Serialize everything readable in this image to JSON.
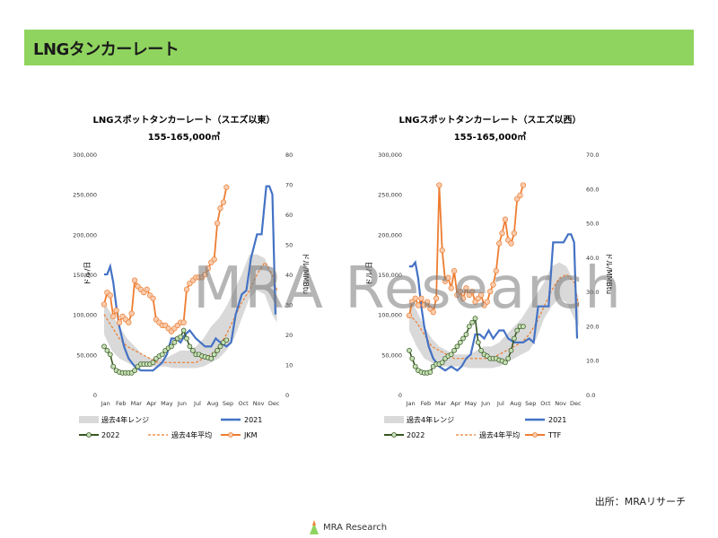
{
  "page": {
    "title": "LNGタンカーレート",
    "source": "出所：MRAリサーチ",
    "logo_text": "MRA Research",
    "watermark": "MRA Research"
  },
  "chart_data": [
    {
      "type": "line",
      "title": "LNGスポットタンカーレート（スエズ以東）",
      "subtitle": "155-165,000㎥",
      "months": [
        "Jan",
        "Feb",
        "Mar",
        "Apr",
        "May",
        "Jun",
        "Jul",
        "Aug",
        "Sep",
        "Oct",
        "Nov",
        "Dec"
      ],
      "y_left_ticks": [
        "0",
        "50,000",
        "100,000",
        "150,000",
        "200,000",
        "250,000",
        "300,000"
      ],
      "y_left_max": 300000,
      "y_left_label": "ドル/日",
      "y_right_ticks": [
        "0",
        "10",
        "20",
        "30",
        "40",
        "50",
        "60",
        "70",
        "80"
      ],
      "y_right_max": 80,
      "y_right_label": "ドル/MMBtu",
      "range4y": {
        "x": [
          0,
          0.5,
          1,
          1.5,
          2,
          2.5,
          3,
          3.5,
          4,
          4.5,
          5,
          5.5,
          6,
          6.5,
          7,
          7.5,
          8,
          8.5,
          9,
          9.5,
          10,
          10.5,
          11,
          11.3
        ],
        "lo": [
          75000,
          55000,
          45000,
          40000,
          35000,
          35000,
          35000,
          35000,
          35000,
          33000,
          33000,
          33000,
          33000,
          35000,
          40000,
          45000,
          55000,
          70000,
          95000,
          120000,
          130000,
          125000,
          100000,
          90000
        ],
        "hi": [
          115000,
          100000,
          85000,
          70000,
          60000,
          50000,
          45000,
          45000,
          45000,
          50000,
          55000,
          55000,
          60000,
          70000,
          85000,
          95000,
          110000,
          130000,
          150000,
          175000,
          175000,
          170000,
          150000,
          130000
        ]
      },
      "avg4y": {
        "x": [
          0,
          0.5,
          1,
          1.5,
          2,
          2.5,
          3,
          3.5,
          4,
          4.5,
          5,
          5.5,
          6,
          6.5,
          7,
          7.5,
          8,
          8.5,
          9,
          9.5,
          10,
          10.5,
          11,
          11.3
        ],
        "y": [
          100000,
          85000,
          70000,
          60000,
          55000,
          50000,
          45000,
          40000,
          40000,
          40000,
          40000,
          40000,
          40000,
          45000,
          50000,
          60000,
          75000,
          95000,
          115000,
          130000,
          150000,
          165000,
          150000,
          130000
        ]
      },
      "y2021": {
        "x": [
          0,
          0.2,
          0.4,
          0.6,
          0.8,
          1.0,
          1.3,
          1.6,
          2.0,
          2.4,
          2.8,
          3.2,
          3.5,
          3.8,
          4.1,
          4.4,
          4.7,
          5.0,
          5.3,
          5.6,
          6.0,
          6.3,
          6.6,
          7.0,
          7.3,
          7.6,
          8.0,
          8.3,
          8.6,
          9.0,
          9.3,
          9.6,
          10.0,
          10.3,
          10.6,
          10.8,
          11.0,
          11.2
        ],
        "y": [
          150000,
          150000,
          160000,
          140000,
          110000,
          85000,
          60000,
          45000,
          35000,
          30000,
          30000,
          30000,
          35000,
          40000,
          50000,
          70000,
          70000,
          65000,
          75000,
          80000,
          70000,
          65000,
          60000,
          60000,
          70000,
          65000,
          60000,
          65000,
          100000,
          125000,
          130000,
          170000,
          200000,
          200000,
          260000,
          260000,
          250000,
          100000
        ]
      },
      "y2022": {
        "x": [
          0,
          0.2,
          0.4,
          0.6,
          0.8,
          1.0,
          1.2,
          1.4,
          1.6,
          1.8,
          2.0,
          2.2,
          2.4,
          2.6,
          2.8,
          3.0,
          3.2,
          3.4,
          3.6,
          3.8,
          4.0,
          4.2,
          4.4,
          4.6,
          4.8,
          5.0,
          5.2,
          5.4,
          5.6,
          5.8,
          6.0,
          6.2,
          6.4,
          6.6,
          6.8,
          7.0,
          7.2,
          7.4,
          7.6,
          7.8,
          8.0
        ],
        "y": [
          60000,
          55000,
          50000,
          35000,
          30000,
          28000,
          27000,
          27000,
          27000,
          27000,
          30000,
          35000,
          38000,
          38000,
          38000,
          38000,
          40000,
          45000,
          48000,
          50000,
          55000,
          58000,
          60000,
          65000,
          70000,
          72000,
          80000,
          70000,
          60000,
          55000,
          50000,
          50000,
          48000,
          47000,
          46000,
          45000,
          50000,
          55000,
          60000,
          65000,
          68000
        ]
      },
      "jkm": {
        "x": [
          0,
          0.2,
          0.4,
          0.6,
          0.8,
          1.0,
          1.2,
          1.4,
          1.6,
          1.8,
          2.0,
          2.2,
          2.4,
          2.6,
          2.8,
          3.0,
          3.2,
          3.4,
          3.6,
          3.8,
          4.0,
          4.2,
          4.4,
          4.6,
          4.8,
          5.0,
          5.2,
          5.4,
          5.6,
          5.8,
          6.0,
          6.2,
          6.4,
          6.6,
          6.8,
          7.0,
          7.2,
          7.4,
          7.6,
          7.8,
          8.0
        ],
        "y": [
          30,
          34,
          33,
          26,
          28,
          24,
          26,
          25,
          24,
          27,
          38,
          36,
          35,
          34,
          35,
          33,
          32,
          25,
          24,
          23,
          23,
          22,
          21,
          22,
          23,
          24,
          24,
          35,
          37,
          38,
          39,
          39,
          39,
          40,
          42,
          44,
          45,
          57,
          62,
          64,
          69
        ]
      }
    },
    {
      "type": "line",
      "title": "LNGスポットタンカーレート（スエズ以西）",
      "subtitle": "155-165,000㎥",
      "months": [
        "Jan",
        "Feb",
        "Mar",
        "Apr",
        "May",
        "Jun",
        "Jul",
        "Aug",
        "Sep",
        "Oct",
        "Nov",
        "Dec"
      ],
      "y_left_ticks": [
        "0",
        "50,000",
        "100,000",
        "150,000",
        "200,000",
        "250,000",
        "300,000"
      ],
      "y_left_max": 300000,
      "y_left_label": "ドル/日",
      "y_right_ticks": [
        "0.0",
        "10.0",
        "20.0",
        "30.0",
        "40.0",
        "50.0",
        "60.0",
        "70.0"
      ],
      "y_right_max": 70,
      "y_right_label": "ドル/MMBtu",
      "range4y": {
        "x": [
          0,
          0.5,
          1,
          1.5,
          2,
          2.5,
          3,
          3.5,
          4,
          4.5,
          5,
          5.5,
          6,
          6.5,
          7,
          7.5,
          8,
          8.5,
          9,
          9.5,
          10,
          10.5,
          11,
          11.3
        ],
        "lo": [
          80000,
          60000,
          45000,
          40000,
          35000,
          35000,
          35000,
          35000,
          33000,
          33000,
          33000,
          33000,
          35000,
          40000,
          45000,
          50000,
          55000,
          70000,
          95000,
          110000,
          120000,
          115000,
          95000,
          85000
        ],
        "hi": [
          120000,
          105000,
          85000,
          70000,
          60000,
          55000,
          50000,
          50000,
          50000,
          55000,
          60000,
          60000,
          65000,
          75000,
          85000,
          95000,
          110000,
          125000,
          140000,
          160000,
          165000,
          160000,
          140000,
          120000
        ]
      },
      "avg4y": {
        "x": [
          0,
          0.5,
          1,
          1.5,
          2,
          2.5,
          3,
          3.5,
          4,
          4.5,
          5,
          5.5,
          6,
          6.5,
          7,
          7.5,
          8,
          8.5,
          9,
          9.5,
          10,
          10.5,
          11,
          11.3
        ],
        "y": [
          100000,
          90000,
          75000,
          60000,
          55000,
          50000,
          45000,
          45000,
          45000,
          45000,
          45000,
          45000,
          50000,
          55000,
          60000,
          65000,
          75000,
          90000,
          110000,
          130000,
          145000,
          150000,
          140000,
          110000
        ]
      },
      "y2021": {
        "x": [
          0,
          0.2,
          0.4,
          0.6,
          0.8,
          1.0,
          1.3,
          1.6,
          2.0,
          2.4,
          2.8,
          3.2,
          3.5,
          3.8,
          4.1,
          4.4,
          4.7,
          5.0,
          5.3,
          5.6,
          6.0,
          6.3,
          6.6,
          7.0,
          7.3,
          7.6,
          8.0,
          8.3,
          8.6,
          9.0,
          9.3,
          9.6,
          10.0,
          10.3,
          10.6,
          10.8,
          11.0,
          11.2
        ],
        "y": [
          160000,
          160000,
          165000,
          145000,
          110000,
          85000,
          60000,
          45000,
          35000,
          30000,
          35000,
          30000,
          35000,
          45000,
          50000,
          75000,
          75000,
          70000,
          80000,
          70000,
          80000,
          80000,
          70000,
          65000,
          65000,
          65000,
          70000,
          65000,
          110000,
          110000,
          110000,
          190000,
          190000,
          190000,
          200000,
          200000,
          190000,
          70000
        ]
      },
      "y2022": {
        "x": [
          0,
          0.2,
          0.4,
          0.6,
          0.8,
          1.0,
          1.2,
          1.4,
          1.6,
          1.8,
          2.0,
          2.2,
          2.4,
          2.6,
          2.8,
          3.0,
          3.2,
          3.4,
          3.6,
          3.8,
          4.0,
          4.2,
          4.4,
          4.6,
          4.8,
          5.0,
          5.2,
          5.4,
          5.6,
          5.8,
          6.0,
          6.2,
          6.4,
          6.6,
          6.8,
          7.0,
          7.2,
          7.4,
          7.6
        ],
        "y": [
          55000,
          45000,
          35000,
          30000,
          28000,
          27000,
          27000,
          28000,
          35000,
          38000,
          38000,
          40000,
          45000,
          48000,
          50000,
          55000,
          60000,
          65000,
          70000,
          75000,
          85000,
          90000,
          95000,
          65000,
          55000,
          50000,
          48000,
          45000,
          45000,
          45000,
          43000,
          42000,
          40000,
          45000,
          55000,
          70000,
          80000,
          85000,
          85000
        ]
      },
      "ttf": {
        "x": [
          0,
          0.2,
          0.4,
          0.6,
          0.8,
          1.0,
          1.2,
          1.4,
          1.6,
          1.8,
          2.0,
          2.2,
          2.4,
          2.6,
          2.8,
          3.0,
          3.2,
          3.4,
          3.6,
          3.8,
          4.0,
          4.2,
          4.4,
          4.6,
          4.8,
          5.0,
          5.2,
          5.4,
          5.6,
          5.8,
          6.0,
          6.2,
          6.4,
          6.6,
          6.8,
          7.0,
          7.2,
          7.4,
          7.6
        ],
        "y": [
          23,
          27,
          28,
          26,
          28,
          26,
          27,
          25,
          24,
          28,
          61,
          42,
          33,
          34,
          31,
          36,
          29,
          30,
          28,
          31,
          29,
          30,
          27,
          28,
          29,
          26,
          27,
          30,
          32,
          36,
          44,
          47,
          51,
          45,
          44,
          47,
          57,
          58,
          61
        ]
      }
    }
  ],
  "legend": {
    "range": "過去4年レンジ",
    "y2021": "2021",
    "y2022": "2022",
    "avg": "過去4年平均",
    "jkm": "JKM",
    "ttf": "TTF"
  },
  "colors": {
    "title_bar": "#8fd45f",
    "range": "#d9d9d9",
    "y2021": "#4472c4",
    "y2022": "#375623",
    "marker2022": "#c5e0b4",
    "avg": "#ed7d31",
    "spot": "#ed7d31",
    "spot_marker": "#f8cbad"
  }
}
